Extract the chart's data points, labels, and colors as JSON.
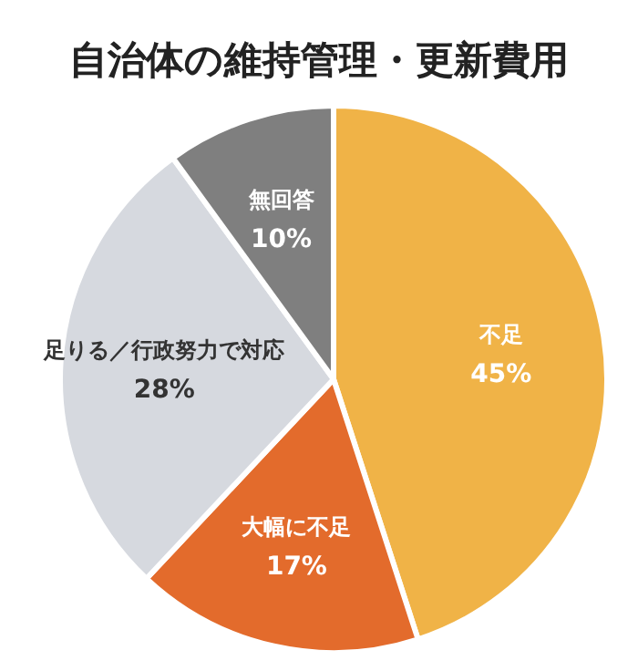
{
  "chart_data": {
    "type": "pie",
    "title": "自治体の維持管理・更新費用",
    "categories": [
      "不足",
      "大幅に不足",
      "足りる／行政努力で対応",
      "無回答"
    ],
    "values": [
      45,
      17,
      28,
      10
    ],
    "colors": [
      "#f0b347",
      "#e36b2c",
      "#d6d9df",
      "#7f7f7f"
    ],
    "value_labels": [
      "45%",
      "17%",
      "28%",
      "10%"
    ]
  }
}
